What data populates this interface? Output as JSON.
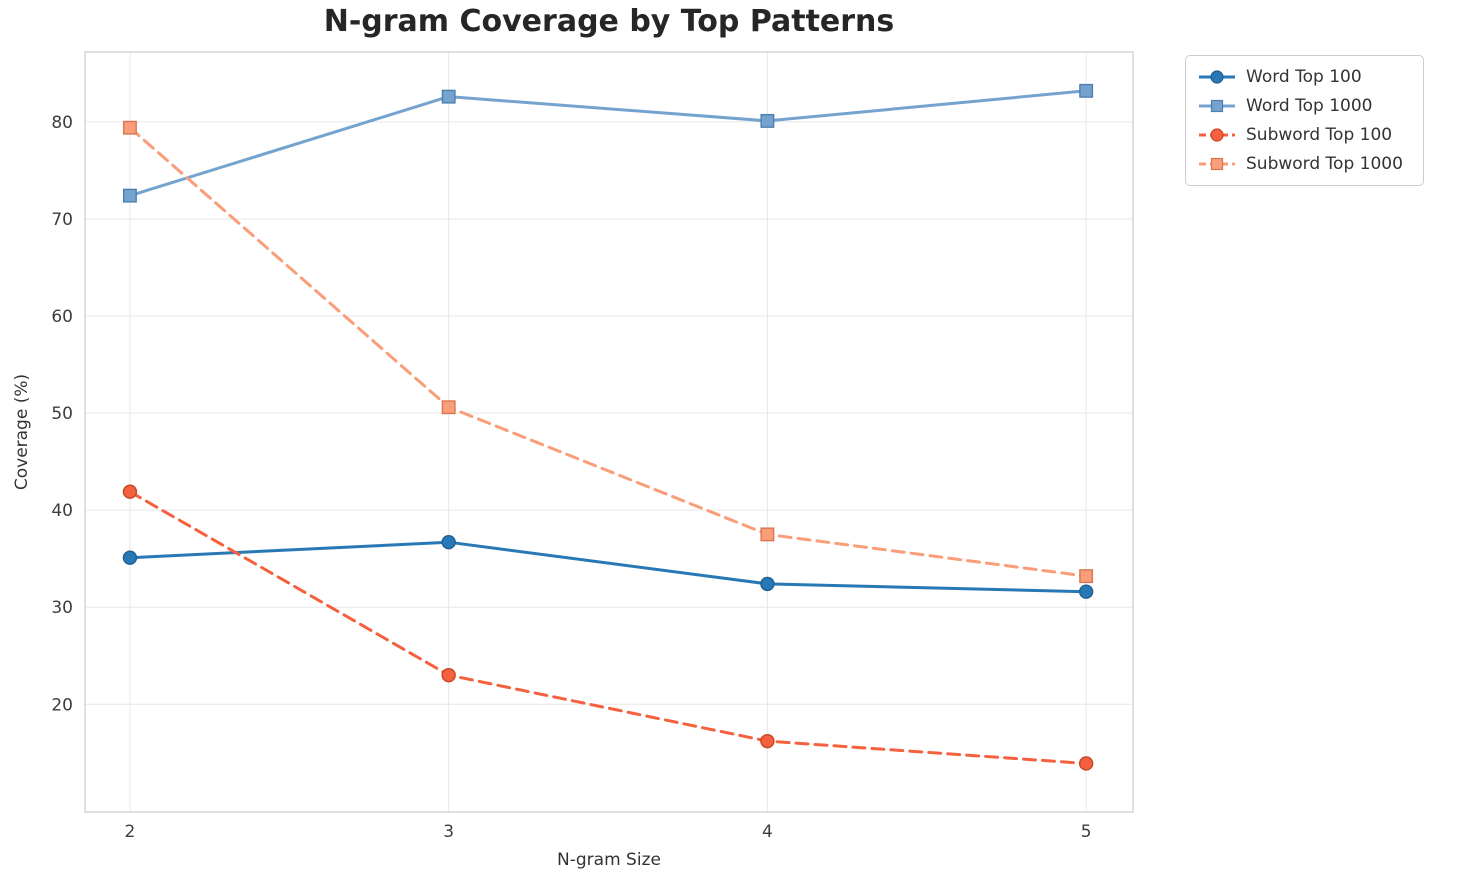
{
  "chart_data": {
    "type": "line",
    "title": "N-gram Coverage by Top Patterns",
    "xlabel": "N-gram Size",
    "ylabel": "Coverage (%)",
    "x": [
      2,
      3,
      4,
      5
    ],
    "xticks": [
      2,
      3,
      4,
      5
    ],
    "yticks": [
      20,
      30,
      40,
      50,
      60,
      70,
      80
    ],
    "xlim": [
      1.859,
      5.147
    ],
    "ylim": [
      8.9,
      87.2
    ],
    "grid": true,
    "legend_position": "outside-top-right",
    "series": [
      {
        "name": "Word Top 100",
        "values": [
          35.1,
          36.7,
          32.4,
          31.6
        ],
        "color": "#2878b5",
        "edge": "#1f5f91",
        "marker": "circle",
        "line": "solid"
      },
      {
        "name": "Word Top 1000",
        "values": [
          72.4,
          82.6,
          80.1,
          83.2
        ],
        "color": "#74a3cf",
        "edge": "#4d7fae",
        "marker": "square",
        "line": "solid"
      },
      {
        "name": "Subword Top 100",
        "values": [
          41.9,
          23.0,
          16.2,
          13.9
        ],
        "color": "#f5613e",
        "edge": "#c74527",
        "marker": "circle",
        "line": "dashed"
      },
      {
        "name": "Subword Top 1000",
        "values": [
          79.4,
          50.6,
          37.5,
          33.2
        ],
        "color": "#fa9d79",
        "edge": "#d97552",
        "marker": "square",
        "line": "dashed"
      }
    ]
  }
}
